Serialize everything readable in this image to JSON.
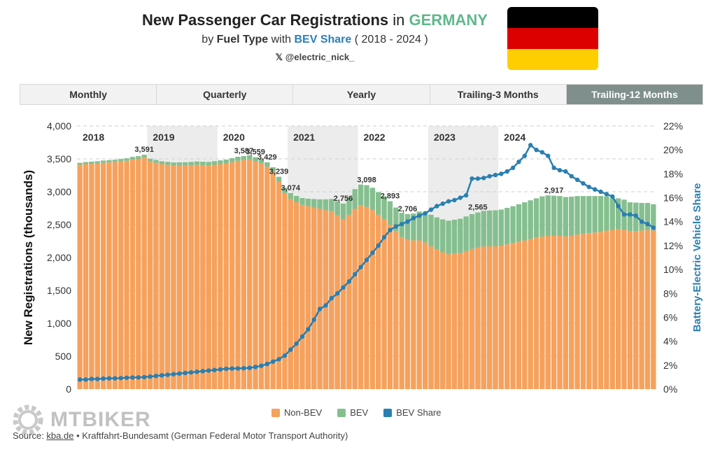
{
  "header": {
    "title_prefix": "New Passenger Car Registrations",
    "title_in": " in ",
    "title_country": "GERMANY",
    "sub_by": "by ",
    "sub_fuel": "Fuel Type",
    "sub_with": " with ",
    "sub_bev": "BEV Share",
    "sub_range": " ( 2018 - 2024 )",
    "handle": "𝕏 @electric_nick_"
  },
  "flag_colors": [
    "#000000",
    "#dd0000",
    "#ffce00"
  ],
  "tabs": [
    {
      "label": "Monthly",
      "active": false
    },
    {
      "label": "Quarterly",
      "active": false
    },
    {
      "label": "Yearly",
      "active": false
    },
    {
      "label": "Trailing-3 Months",
      "active": false
    },
    {
      "label": "Trailing-12 Months",
      "active": true
    }
  ],
  "legend": {
    "nonbev": "Non-BEV",
    "bev": "BEV",
    "share": "BEV Share"
  },
  "colors": {
    "nonbev": "#f6a15c",
    "bev": "#85bf8f",
    "share": "#2a7fb0",
    "band": "#ececec"
  },
  "source": {
    "prefix": "Source: ",
    "link": "kba.de",
    "suffix": " • Kraftfahrt-Bundesamt (German Federal Motor Transport Authority)"
  },
  "watermark": "MTBIKER",
  "chart_data": {
    "type": "bar",
    "ylabel": "New Registrations (thousands)",
    "y2label": "Battery-Electric Vehicle Share",
    "ylim": [
      0,
      4000
    ],
    "y2lim": [
      0,
      22
    ],
    "yticks": [
      "0",
      "500",
      "1,000",
      "1,500",
      "2,000",
      "2,500",
      "3,000",
      "3,500",
      "4,000"
    ],
    "y2ticks": [
      "0%",
      "2%",
      "4%",
      "6%",
      "8%",
      "10%",
      "12%",
      "14%",
      "16%",
      "18%",
      "20%",
      "22%"
    ],
    "years": [
      "2018",
      "2019",
      "2020",
      "2021",
      "2022",
      "2023",
      "2024"
    ],
    "total_labels": [
      "3,591",
      "3,587",
      "3,559",
      "3,429",
      "3,239",
      "3,074",
      "2,756",
      "3,098",
      "2,893",
      "2,706",
      "2,565",
      "2,917"
    ],
    "series_nonbev": [
      3410,
      3420,
      3425,
      3430,
      3440,
      3445,
      3450,
      3460,
      3470,
      3490,
      3500,
      3520,
      3460,
      3440,
      3420,
      3410,
      3400,
      3400,
      3400,
      3405,
      3410,
      3405,
      3400,
      3410,
      3420,
      3430,
      3450,
      3470,
      3480,
      3490,
      3460,
      3430,
      3380,
      3300,
      3150,
      2980,
      2890,
      2840,
      2800,
      2780,
      2760,
      2740,
      2720,
      2700,
      2640,
      2580,
      2650,
      2740,
      2790,
      2770,
      2720,
      2650,
      2580,
      2500,
      2400,
      2310,
      2270,
      2260,
      2260,
      2230,
      2170,
      2120,
      2080,
      2050,
      2060,
      2070,
      2100,
      2130,
      2150,
      2170,
      2170,
      2170,
      2180,
      2200,
      2220,
      2240,
      2260,
      2280,
      2300,
      2320,
      2330,
      2330,
      2330,
      2320,
      2330,
      2350,
      2360,
      2370,
      2380,
      2390,
      2410,
      2420,
      2430,
      2420,
      2400,
      2400,
      2410,
      2420,
      2410
    ],
    "series_bev": [
      30,
      32,
      33,
      34,
      35,
      36,
      37,
      38,
      39,
      40,
      41,
      42,
      42,
      43,
      44,
      45,
      46,
      47,
      48,
      49,
      50,
      52,
      53,
      55,
      57,
      59,
      60,
      62,
      63,
      64,
      65,
      66,
      68,
      72,
      78,
      84,
      90,
      97,
      105,
      115,
      130,
      145,
      165,
      190,
      215,
      240,
      270,
      300,
      320,
      330,
      340,
      345,
      350,
      355,
      360,
      370,
      390,
      410,
      440,
      460,
      480,
      490,
      500,
      510,
      515,
      520,
      525,
      530,
      535,
      540,
      545,
      548,
      550,
      555,
      560,
      570,
      580,
      590,
      600,
      610,
      615,
      610,
      605,
      600,
      595,
      585,
      575,
      565,
      555,
      545,
      520,
      480,
      470,
      460,
      440,
      435,
      420,
      410,
      400
    ],
    "series_share": [
      0.8,
      0.8,
      0.85,
      0.85,
      0.88,
      0.9,
      0.9,
      0.92,
      0.95,
      0.97,
      0.98,
      1.0,
      1.05,
      1.1,
      1.15,
      1.2,
      1.25,
      1.3,
      1.35,
      1.4,
      1.45,
      1.5,
      1.55,
      1.6,
      1.65,
      1.7,
      1.72,
      1.73,
      1.75,
      1.78,
      1.85,
      1.95,
      2.1,
      2.3,
      2.5,
      2.8,
      3.3,
      3.8,
      4.4,
      5.0,
      5.8,
      6.7,
      7.0,
      7.6,
      8.0,
      8.5,
      9.0,
      9.6,
      10.2,
      10.8,
      11.4,
      12.0,
      12.7,
      13.3,
      13.6,
      13.8,
      14.0,
      14.3,
      14.5,
      14.7,
      15.0,
      15.3,
      15.5,
      15.7,
      15.8,
      16.0,
      16.2,
      17.6,
      17.6,
      17.65,
      17.8,
      17.9,
      18.0,
      18.2,
      18.5,
      19.0,
      19.5,
      20.4,
      20.0,
      19.8,
      19.5,
      18.5,
      18.3,
      18.2,
      17.8,
      17.5,
      17.2,
      16.9,
      16.7,
      16.5,
      16.3,
      16.1,
      15.3,
      14.6,
      14.6,
      14.5,
      14.0,
      13.8,
      13.5
    ]
  }
}
